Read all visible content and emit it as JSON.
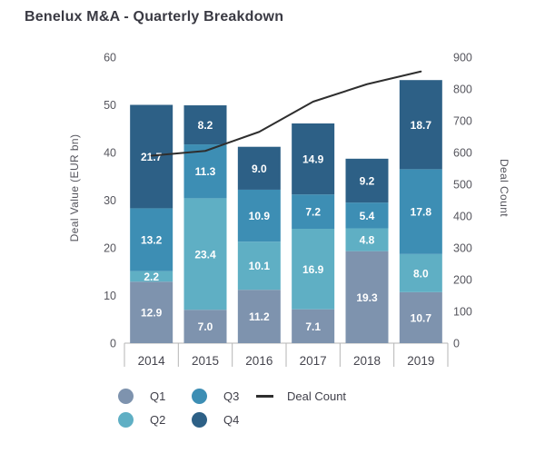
{
  "page": {
    "background": "#ffffff"
  },
  "chart_data": {
    "type": "bar",
    "stacked": true,
    "title": "Benelux M&A - Quarterly Breakdown",
    "categories": [
      "2014",
      "2015",
      "2016",
      "2017",
      "2018",
      "2019"
    ],
    "series": [
      {
        "name": "Q1",
        "color": "#7e93ae",
        "values": [
          12.9,
          7.0,
          11.2,
          7.1,
          19.3,
          10.7
        ]
      },
      {
        "name": "Q2",
        "color": "#5fafc4",
        "values": [
          2.2,
          23.4,
          10.1,
          16.9,
          4.8,
          8.0
        ]
      },
      {
        "name": "Q3",
        "color": "#3d8eb4",
        "values": [
          13.2,
          11.3,
          10.9,
          7.2,
          5.4,
          17.8
        ]
      },
      {
        "name": "Q4",
        "color": "#2d6086",
        "values": [
          21.7,
          8.2,
          9.0,
          14.9,
          9.2,
          18.7
        ]
      }
    ],
    "line_series": {
      "name": "Deal Count",
      "color": "#2e2e2e",
      "axis": "right",
      "values": [
        590,
        605,
        665,
        760,
        815,
        855
      ]
    },
    "y_left": {
      "label": "Deal Value (EUR bn)",
      "min": 0,
      "max": 60,
      "ticks": [
        0,
        10,
        20,
        30,
        40,
        50,
        60
      ]
    },
    "y_right": {
      "label": "Deal Count",
      "min": 0,
      "max": 900,
      "ticks": [
        0,
        100,
        200,
        300,
        400,
        500,
        600,
        700,
        800,
        900
      ]
    },
    "legend": {
      "position": "bottom",
      "entries": [
        "Q1",
        "Q2",
        "Q3",
        "Q4",
        "Deal Count"
      ]
    },
    "grid": false,
    "value_label_format": "0.1f"
  },
  "colors": {
    "title": "#3a3a43",
    "axis_text": "#55555d",
    "axis_line": "#b5b5b5",
    "value_label": "#ffffff"
  }
}
